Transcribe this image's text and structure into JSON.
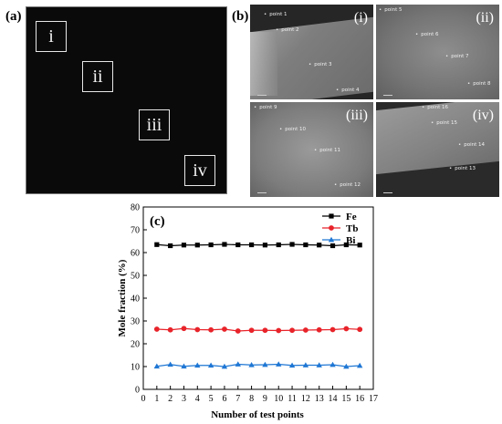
{
  "panel_a": {
    "label": "(a)",
    "regions": [
      "i",
      "ii",
      "iii",
      "iv"
    ]
  },
  "panel_b": {
    "label": "(b)",
    "images": [
      {
        "tag": "(i)",
        "points": [
          "point 1",
          "point 2",
          "point 3",
          "point 4"
        ]
      },
      {
        "tag": "(ii)",
        "points": [
          "point 5",
          "point 6",
          "point 7",
          "point 8"
        ]
      },
      {
        "tag": "(iii)",
        "points": [
          "point 9",
          "point 10",
          "point 11",
          "point 12"
        ]
      },
      {
        "tag": "(iv)",
        "points": [
          "point 16",
          "point 15",
          "point 14",
          "point 13"
        ]
      }
    ]
  },
  "panel_c": {
    "label": "(c)"
  },
  "chart_data": {
    "type": "line",
    "xlabel": "Number of test points",
    "ylabel": "Mole fraction (%)",
    "xlim": [
      0,
      17
    ],
    "ylim": [
      0,
      80
    ],
    "xticks": [
      0,
      1,
      2,
      3,
      4,
      5,
      6,
      7,
      8,
      9,
      10,
      11,
      12,
      13,
      14,
      15,
      16,
      17
    ],
    "yticks": [
      0,
      10,
      20,
      30,
      40,
      50,
      60,
      70,
      80
    ],
    "x": [
      1,
      2,
      3,
      4,
      5,
      6,
      7,
      8,
      9,
      10,
      11,
      12,
      13,
      14,
      15,
      16
    ],
    "legend_position": "top-right",
    "series": [
      {
        "name": "Fe",
        "color": "#000000",
        "marker": "square",
        "values": [
          63.5,
          63.0,
          63.3,
          63.3,
          63.4,
          63.6,
          63.4,
          63.4,
          63.3,
          63.4,
          63.6,
          63.4,
          63.3,
          63.0,
          63.4,
          63.3
        ]
      },
      {
        "name": "Tb",
        "color": "#e8232a",
        "marker": "circle",
        "values": [
          26.4,
          26.1,
          26.7,
          26.2,
          26.1,
          26.4,
          25.6,
          25.9,
          25.9,
          25.8,
          25.9,
          26.0,
          26.1,
          26.2,
          26.6,
          26.3
        ]
      },
      {
        "name": "Bi",
        "color": "#1f77d4",
        "marker": "triangle",
        "values": [
          10.1,
          10.9,
          10.1,
          10.5,
          10.5,
          10.0,
          11.0,
          10.7,
          10.8,
          11.0,
          10.5,
          10.6,
          10.6,
          10.8,
          10.0,
          10.4
        ]
      }
    ]
  }
}
